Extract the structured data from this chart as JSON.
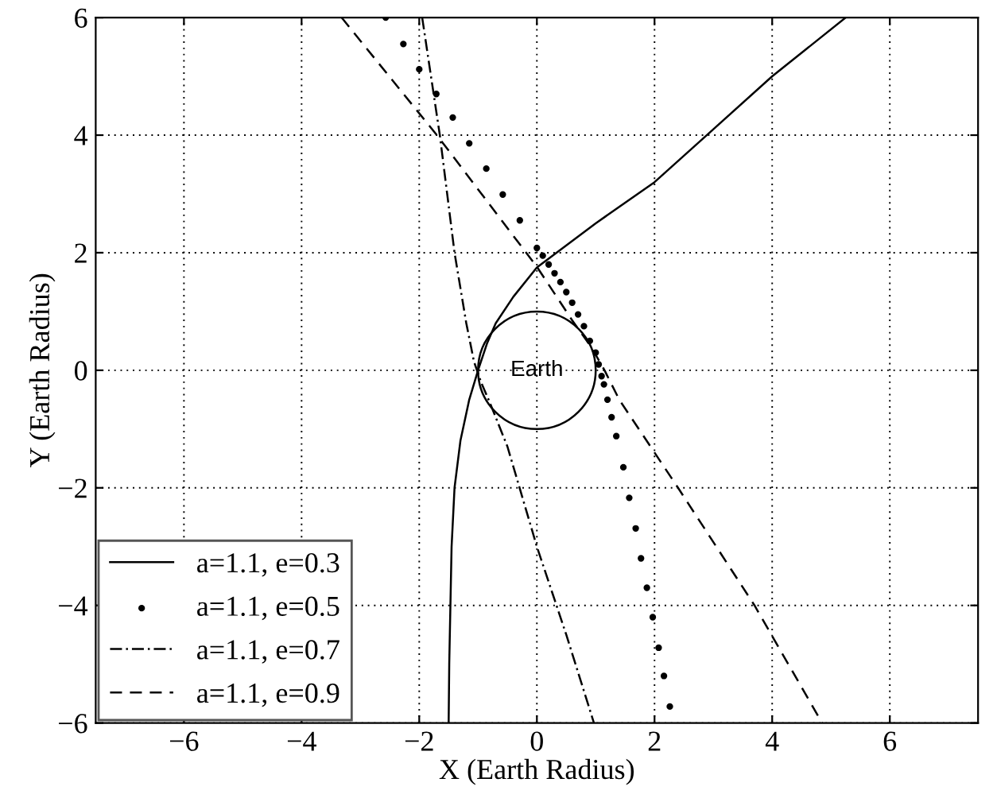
{
  "chart_data": {
    "type": "line",
    "xlabel": "X (Earth Radius)",
    "ylabel": "Y (Earth Radius)",
    "xlim": [
      -7.5,
      7.5
    ],
    "ylim": [
      -6,
      6
    ],
    "xticks": [
      -6,
      -4,
      -2,
      0,
      2,
      4,
      6
    ],
    "yticks": [
      -6,
      -4,
      -2,
      0,
      2,
      4,
      6
    ],
    "grid": true,
    "legend": "bottom left",
    "annotations": [
      "Earth"
    ],
    "series": [
      {
        "name": "a=1.1, e=0.3",
        "line_style": "solid",
        "color": "#000000",
        "x": [
          -1.5,
          -1.49,
          -1.47,
          -1.45,
          -1.4,
          -1.3,
          -1.15,
          -1.0,
          -0.85,
          -0.7,
          -0.4,
          0,
          1,
          2,
          3,
          4,
          5.25
        ],
        "values": [
          -6,
          -5,
          -4,
          -3,
          -2,
          -1.2,
          -0.5,
          0,
          0.45,
          0.8,
          1.25,
          1.75,
          2.5,
          3.2,
          4.1,
          5.0,
          6
        ]
      },
      {
        "name": "a=1.1, e=0.5",
        "type": "scatter",
        "marker": "circle",
        "color": "#000000",
        "x": [
          -2.57,
          -2.27,
          -2.0,
          -1.71,
          -1.43,
          -1.15,
          -0.86,
          -0.58,
          -0.29,
          0,
          0.1,
          0.2,
          0.3,
          0.4,
          0.5,
          0.6,
          0.7,
          0.8,
          0.9,
          1.0,
          1.05,
          1.1,
          1.14,
          1.2,
          1.27,
          1.35,
          1.47,
          1.57,
          1.68,
          1.77,
          1.87,
          1.97,
          2.07,
          2.16,
          2.26
        ],
        "values": [
          6,
          5.55,
          5.12,
          4.7,
          4.3,
          3.86,
          3.43,
          2.99,
          2.55,
          2.08,
          1.95,
          1.8,
          1.65,
          1.5,
          1.33,
          1.15,
          0.95,
          0.75,
          0.5,
          0.3,
          0.1,
          -0.1,
          -0.24,
          -0.5,
          -0.8,
          -1.12,
          -1.65,
          -2.17,
          -2.69,
          -3.2,
          -3.7,
          -4.2,
          -4.72,
          -5.2,
          -5.72
        ]
      },
      {
        "name": "a=1.1, e=0.7",
        "line_style": "dashdot",
        "color": "#000000",
        "x": [
          -1.95,
          -1.65,
          -1.4,
          -1.2,
          -1.07,
          -0.95,
          -0.8,
          -0.5,
          0,
          0.5,
          0.97
        ],
        "values": [
          6,
          4,
          2,
          0.8,
          0.15,
          -0.2,
          -0.55,
          -1.3,
          -3.0,
          -4.5,
          -6
        ]
      },
      {
        "name": "a=1.1, e=0.9",
        "line_style": "dashed",
        "color": "#000000",
        "x": [
          -3.32,
          -1.7,
          0,
          0.6,
          0.92,
          1.15,
          1.4,
          2.4,
          3.7,
          4.85
        ],
        "values": [
          6,
          4,
          1.76,
          0.85,
          0.4,
          0,
          -0.5,
          -2,
          -4,
          -6
        ]
      }
    ]
  }
}
